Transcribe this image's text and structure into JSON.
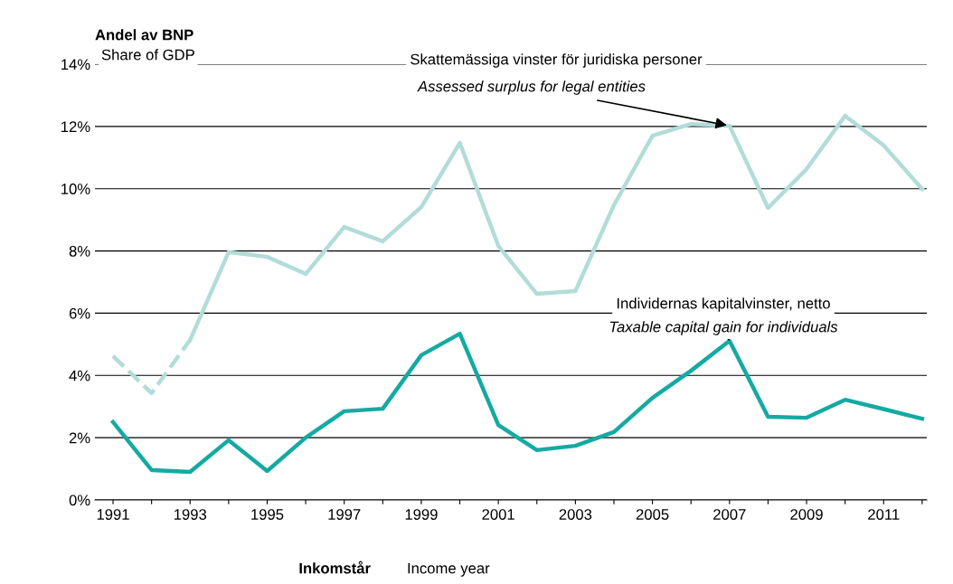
{
  "chart_data": {
    "type": "line",
    "title": "Andel av BNP",
    "subtitle": "Share of GDP",
    "xlabel": "Inkomstår",
    "categories": [
      "1991",
      null,
      "1993",
      null,
      "1995",
      null,
      "1997",
      null,
      "1999",
      null,
      "2001",
      null,
      "2003",
      null,
      "2005",
      null,
      "2007",
      null,
      "2009",
      null,
      "2011",
      null
    ],
    "series": [
      {
        "color": "#b2dcd8",
        "line_style": "dashed",
        "values": [
          4.62,
          3.43,
          5.14,
          null,
          null,
          null,
          null,
          null,
          null,
          null,
          null,
          null,
          null,
          null,
          null,
          null,
          null,
          null,
          null,
          null,
          null,
          null
        ]
      },
      {
        "color": "#b2dcd8",
        "line_style": "solid",
        "values": [
          null,
          null,
          5.14,
          7.96,
          7.81,
          7.26,
          8.77,
          8.31,
          9.41,
          11.47,
          8.16,
          6.62,
          6.71,
          9.47,
          11.7,
          12.08,
          12.02,
          9.38,
          10.63,
          12.34,
          11.39,
          9.99
        ]
      },
      {
        "color": "#14aaa2",
        "line_style": "solid",
        "values": [
          2.5,
          0.96,
          0.9,
          1.92,
          0.93,
          2.0,
          2.85,
          2.93,
          4.65,
          5.34,
          2.41,
          1.6,
          1.74,
          2.18,
          3.28,
          4.15,
          5.11,
          2.67,
          2.64,
          3.22,
          2.92,
          2.61
        ]
      }
    ],
    "ylim": [
      0,
      14
    ],
    "yticks": [
      {
        "value": 0,
        "label": "0%"
      },
      {
        "value": 2,
        "label": "2%"
      },
      {
        "value": 4,
        "label": "4%"
      },
      {
        "value": 6,
        "label": "6%"
      },
      {
        "value": 8,
        "label": "8%"
      },
      {
        "value": 10,
        "label": "10%"
      },
      {
        "value": 12,
        "label": "12%"
      },
      {
        "value": 14,
        "label": "14%"
      }
    ],
    "grid": "y",
    "legend": false,
    "marker": "none",
    "annotations": [
      "Skattemässiga vinster för juridiska personer",
      {
        "text": "Assessed surplus for legal entities",
        "x": "2007",
        "y": 12.02
      },
      "Individernas kapitalvinster, netto",
      {
        "text": "Taxable capital gain for individuals",
        "x": "2007",
        "y": 5.11
      },
      "Income year"
    ]
  }
}
